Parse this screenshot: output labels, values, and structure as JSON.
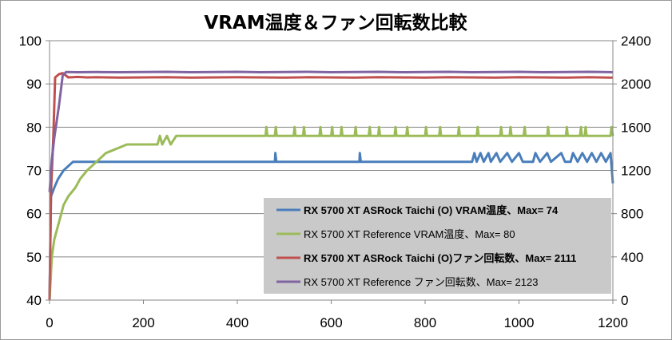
{
  "chart_data": {
    "type": "line",
    "title": "VRAM温度＆ファン回転数比較",
    "xlabel": "",
    "ylabel": "",
    "y2label": "",
    "xlim": [
      0,
      1200
    ],
    "ylim": [
      40,
      100
    ],
    "y2lim": [
      0,
      2400
    ],
    "xticks": [
      "0",
      "200",
      "400",
      "600",
      "800",
      "1000",
      "1200"
    ],
    "yticks": [
      "40",
      "50",
      "60",
      "70",
      "80",
      "90",
      "100"
    ],
    "y2ticks": [
      "0",
      "400",
      "800",
      "1200",
      "1600",
      "2000",
      "2400"
    ],
    "grid": "horizontal",
    "legend_position": "bottom-right",
    "series": [
      {
        "name": "RX 5700 XT ASRock Taichi (O) VRAM温度、Max= 74",
        "axis": "left",
        "color": "#4a7ebb",
        "bold": true,
        "points": [
          [
            0,
            40
          ],
          [
            3,
            64
          ],
          [
            10,
            66
          ],
          [
            18,
            68
          ],
          [
            30,
            70
          ],
          [
            50,
            72
          ],
          [
            120,
            72
          ],
          [
            480,
            72
          ],
          [
            481,
            74
          ],
          [
            483,
            72
          ],
          [
            660,
            72
          ],
          [
            661,
            74
          ],
          [
            663,
            72
          ],
          [
            900,
            72
          ],
          [
            905,
            74
          ],
          [
            910,
            72
          ],
          [
            918,
            74
          ],
          [
            925,
            72
          ],
          [
            935,
            74
          ],
          [
            940,
            72
          ],
          [
            952,
            74
          ],
          [
            960,
            72
          ],
          [
            975,
            74
          ],
          [
            985,
            72
          ],
          [
            1000,
            74
          ],
          [
            1008,
            72
          ],
          [
            1030,
            72
          ],
          [
            1035,
            74
          ],
          [
            1045,
            72
          ],
          [
            1060,
            74
          ],
          [
            1068,
            72
          ],
          [
            1090,
            74
          ],
          [
            1098,
            72
          ],
          [
            1110,
            72
          ],
          [
            1115,
            74
          ],
          [
            1125,
            72
          ],
          [
            1135,
            74
          ],
          [
            1145,
            72
          ],
          [
            1155,
            74
          ],
          [
            1165,
            72
          ],
          [
            1175,
            74
          ],
          [
            1185,
            72
          ],
          [
            1195,
            74
          ],
          [
            1200,
            67
          ]
        ]
      },
      {
        "name": "RX 5700 XT Reference VRAM温度、Max= 80",
        "axis": "left",
        "color": "#9bbb59",
        "bold": false,
        "points": [
          [
            0,
            40
          ],
          [
            5,
            50
          ],
          [
            10,
            54
          ],
          [
            20,
            58
          ],
          [
            30,
            62
          ],
          [
            40,
            64
          ],
          [
            55,
            66
          ],
          [
            65,
            68
          ],
          [
            80,
            70
          ],
          [
            100,
            72
          ],
          [
            120,
            74
          ],
          [
            165,
            76
          ],
          [
            230,
            76
          ],
          [
            235,
            78
          ],
          [
            240,
            76
          ],
          [
            250,
            78
          ],
          [
            258,
            76
          ],
          [
            270,
            78
          ],
          [
            460,
            78
          ],
          [
            462,
            80
          ],
          [
            464,
            78
          ],
          [
            480,
            78
          ],
          [
            482,
            80
          ],
          [
            484,
            78
          ],
          [
            520,
            78
          ],
          [
            522,
            80
          ],
          [
            524,
            78
          ],
          [
            540,
            78
          ],
          [
            542,
            80
          ],
          [
            544,
            78
          ],
          [
            575,
            78
          ],
          [
            577,
            80
          ],
          [
            579,
            78
          ],
          [
            600,
            78
          ],
          [
            602,
            80
          ],
          [
            604,
            78
          ],
          [
            620,
            78
          ],
          [
            622,
            80
          ],
          [
            624,
            78
          ],
          [
            650,
            78
          ],
          [
            652,
            80
          ],
          [
            654,
            78
          ],
          [
            680,
            78
          ],
          [
            682,
            80
          ],
          [
            684,
            78
          ],
          [
            700,
            78
          ],
          [
            702,
            80
          ],
          [
            704,
            78
          ],
          [
            735,
            78
          ],
          [
            737,
            80
          ],
          [
            739,
            78
          ],
          [
            760,
            78
          ],
          [
            762,
            80
          ],
          [
            764,
            78
          ],
          [
            800,
            78
          ],
          [
            802,
            80
          ],
          [
            804,
            78
          ],
          [
            830,
            78
          ],
          [
            832,
            80
          ],
          [
            834,
            78
          ],
          [
            870,
            78
          ],
          [
            872,
            80
          ],
          [
            874,
            78
          ],
          [
            910,
            78
          ],
          [
            912,
            80
          ],
          [
            914,
            78
          ],
          [
            960,
            78
          ],
          [
            962,
            80
          ],
          [
            964,
            78
          ],
          [
            980,
            78
          ],
          [
            982,
            80
          ],
          [
            984,
            78
          ],
          [
            1010,
            78
          ],
          [
            1012,
            80
          ],
          [
            1014,
            78
          ],
          [
            1060,
            78
          ],
          [
            1062,
            80
          ],
          [
            1064,
            78
          ],
          [
            1100,
            78
          ],
          [
            1102,
            80
          ],
          [
            1104,
            78
          ],
          [
            1130,
            78
          ],
          [
            1132,
            80
          ],
          [
            1134,
            78
          ],
          [
            1140,
            78
          ],
          [
            1142,
            80
          ],
          [
            1144,
            78
          ],
          [
            1195,
            78
          ],
          [
            1197,
            80
          ],
          [
            1200,
            78
          ]
        ]
      },
      {
        "name": "RX 5700 XT ASRock Taichi (O)ファン回転数、Max= 2111",
        "axis": "right",
        "color": "#c0504d",
        "bold": true,
        "points": [
          [
            0,
            0
          ],
          [
            3,
            1000
          ],
          [
            8,
            1500
          ],
          [
            12,
            2060
          ],
          [
            20,
            2090
          ],
          [
            28,
            2100
          ],
          [
            40,
            2060
          ],
          [
            60,
            2065
          ],
          [
            80,
            2060
          ],
          [
            100,
            2062
          ],
          [
            150,
            2058
          ],
          [
            200,
            2060
          ],
          [
            250,
            2062
          ],
          [
            300,
            2058
          ],
          [
            350,
            2060
          ],
          [
            400,
            2062
          ],
          [
            450,
            2060
          ],
          [
            500,
            2058
          ],
          [
            550,
            2062
          ],
          [
            600,
            2060
          ],
          [
            650,
            2058
          ],
          [
            700,
            2062
          ],
          [
            750,
            2060
          ],
          [
            800,
            2058
          ],
          [
            850,
            2062
          ],
          [
            900,
            2060
          ],
          [
            950,
            2058
          ],
          [
            1000,
            2062
          ],
          [
            1050,
            2060
          ],
          [
            1100,
            2058
          ],
          [
            1150,
            2062
          ],
          [
            1200,
            2058
          ]
        ]
      },
      {
        "name": "RX 5700 XT Reference ファン回転数、Max= 2123",
        "axis": "right",
        "color": "#8064a2",
        "bold": false,
        "points": [
          [
            0,
            1000
          ],
          [
            5,
            1300
          ],
          [
            10,
            1500
          ],
          [
            20,
            1800
          ],
          [
            28,
            2080
          ],
          [
            35,
            2110
          ],
          [
            60,
            2108
          ],
          [
            100,
            2110
          ],
          [
            150,
            2108
          ],
          [
            200,
            2110
          ],
          [
            250,
            2112
          ],
          [
            300,
            2108
          ],
          [
            350,
            2110
          ],
          [
            400,
            2112
          ],
          [
            450,
            2108
          ],
          [
            500,
            2110
          ],
          [
            550,
            2112
          ],
          [
            600,
            2108
          ],
          [
            650,
            2110
          ],
          [
            700,
            2112
          ],
          [
            750,
            2108
          ],
          [
            800,
            2110
          ],
          [
            850,
            2112
          ],
          [
            900,
            2108
          ],
          [
            950,
            2110
          ],
          [
            1000,
            2112
          ],
          [
            1050,
            2108
          ],
          [
            1100,
            2110
          ],
          [
            1150,
            2112
          ],
          [
            1200,
            2108
          ]
        ]
      }
    ]
  }
}
